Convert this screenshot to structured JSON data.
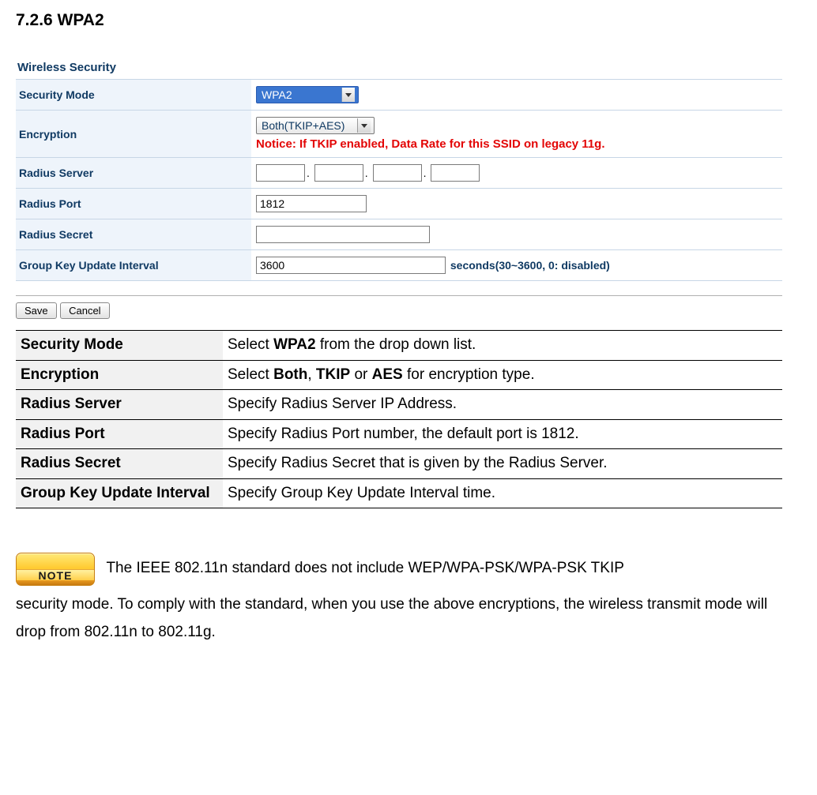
{
  "heading": "7.2.6 WPA2",
  "panel": {
    "title": "Wireless Security",
    "rows": {
      "security_mode": {
        "label": "Security Mode",
        "value": "WPA2"
      },
      "encryption": {
        "label": "Encryption",
        "value": "Both(TKIP+AES)",
        "notice": "Notice: If TKIP enabled, Data Rate for this SSID on legacy 11g."
      },
      "radius_server": {
        "label": "Radius Server",
        "oct1": "",
        "oct2": "",
        "oct3": "",
        "oct4": ""
      },
      "radius_port": {
        "label": "Radius Port",
        "value": "1812"
      },
      "radius_secret": {
        "label": "Radius Secret",
        "value": ""
      },
      "group_key": {
        "label": "Group Key Update Interval",
        "value": "3600",
        "suffix": "seconds(30~3600, 0: disabled)"
      }
    },
    "buttons": {
      "save": "Save",
      "cancel": "Cancel"
    }
  },
  "desc": [
    {
      "k": "Security Mode",
      "v": "Select <b>WPA2</b> from the drop down list."
    },
    {
      "k": "Encryption",
      "v": "Select <b>Both</b>, <b>TKIP</b> or <b>AES</b> for encryption type."
    },
    {
      "k": "Radius Server",
      "v": "Specify Radius Server IP Address."
    },
    {
      "k": "Radius Port",
      "v": "Specify Radius Port number, the default port is 1812."
    },
    {
      "k": "Radius Secret",
      "v": "Specify Radius Secret that is given by the Radius Server."
    },
    {
      "k": "Group Key Update Interval",
      "v": "Specify Group Key Update Interval time."
    }
  ],
  "note": {
    "badge": "NOTE",
    "text_lead": "The IEEE 802.11n standard does not include WEP/WPA-PSK/WPA-PSK TKIP",
    "text_rest": "security mode. To comply with the standard, when you use the above encryptions, the wireless transmit mode will drop from 802.11n to 802.11g."
  }
}
